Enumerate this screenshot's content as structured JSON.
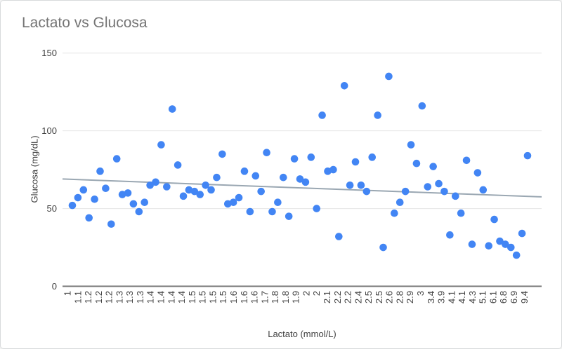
{
  "window": {
    "background": "#ffffff",
    "border_color": "#d8dadc"
  },
  "chart_data": {
    "type": "scatter",
    "title": "Lactato vs Glucosa",
    "xlabel": "Lactato (mmol/L)",
    "ylabel": "Glucosa (mg/dL)",
    "ylim": [
      0,
      150
    ],
    "yticks": [
      0,
      50,
      100,
      150
    ],
    "grid": "horizontal",
    "legend": "none",
    "x_tick_labels": [
      "1",
      "1.1",
      "1.2",
      "1.2",
      "1.2",
      "1.3",
      "1.3",
      "1.3",
      "1.4",
      "1.4",
      "1.4",
      "1.4",
      "1.5",
      "1.5",
      "1.5",
      "1.5",
      "1.6",
      "1.6",
      "1.6",
      "1.7",
      "1.8",
      "1.8",
      "1.9",
      "2",
      "2",
      "2.1",
      "2.2",
      "2.2",
      "2.4",
      "2.5",
      "2.5",
      "2.6",
      "2.8",
      "2.9",
      "3",
      "3.4",
      "3.9",
      "4.1",
      "4.1",
      "4.3",
      "5.1",
      "6.1",
      "6.8",
      "6.9",
      "9.4"
    ],
    "series": [
      {
        "name": "Glucosa",
        "color": "#4285f4",
        "points": [
          [
            1,
            52
          ],
          [
            1.1,
            57
          ],
          [
            1.1,
            62
          ],
          [
            1.2,
            44
          ],
          [
            1.2,
            56
          ],
          [
            1.2,
            74
          ],
          [
            1.2,
            63
          ],
          [
            1.2,
            40
          ],
          [
            1.2,
            82
          ],
          [
            1.3,
            59
          ],
          [
            1.3,
            60
          ],
          [
            1.3,
            53
          ],
          [
            1.3,
            48
          ],
          [
            1.3,
            54
          ],
          [
            1.4,
            65
          ],
          [
            1.4,
            67
          ],
          [
            1.4,
            91
          ],
          [
            1.4,
            64
          ],
          [
            1.4,
            114
          ],
          [
            1.4,
            78
          ],
          [
            1.4,
            58
          ],
          [
            1.4,
            62
          ],
          [
            1.5,
            61
          ],
          [
            1.5,
            59
          ],
          [
            1.5,
            65
          ],
          [
            1.5,
            62
          ],
          [
            1.5,
            70
          ],
          [
            1.5,
            85
          ],
          [
            1.5,
            53
          ],
          [
            1.6,
            54
          ],
          [
            1.6,
            57
          ],
          [
            1.6,
            74
          ],
          [
            1.6,
            48
          ],
          [
            1.6,
            71
          ],
          [
            1.6,
            61
          ],
          [
            1.7,
            86
          ],
          [
            1.7,
            48
          ],
          [
            1.8,
            54
          ],
          [
            1.8,
            70
          ],
          [
            1.8,
            45
          ],
          [
            1.8,
            82
          ],
          [
            1.9,
            69
          ],
          [
            2,
            67
          ],
          [
            2,
            83
          ],
          [
            2,
            50
          ],
          [
            2,
            110
          ],
          [
            2.1,
            74
          ],
          [
            2.1,
            75
          ],
          [
            2.2,
            32
          ],
          [
            2.2,
            129
          ],
          [
            2.2,
            65
          ],
          [
            2.2,
            80
          ],
          [
            2.4,
            65
          ],
          [
            2.4,
            61
          ],
          [
            2.5,
            83
          ],
          [
            2.5,
            110
          ],
          [
            2.5,
            25
          ],
          [
            2.6,
            135
          ],
          [
            2.6,
            47
          ],
          [
            2.8,
            54
          ],
          [
            2.8,
            61
          ],
          [
            2.9,
            91
          ],
          [
            2.9,
            79
          ],
          [
            3,
            116
          ],
          [
            3,
            64
          ],
          [
            3.4,
            77
          ],
          [
            3.4,
            66
          ],
          [
            3.9,
            61
          ],
          [
            3.9,
            33
          ],
          [
            4.1,
            58
          ],
          [
            4.1,
            47
          ],
          [
            4.1,
            81
          ],
          [
            4.3,
            27
          ],
          [
            4.3,
            73
          ],
          [
            5.1,
            62
          ],
          [
            5.1,
            26
          ],
          [
            6.1,
            43
          ],
          [
            6.1,
            29
          ],
          [
            6.8,
            27
          ],
          [
            6.8,
            25
          ],
          [
            6.9,
            20
          ],
          [
            6.9,
            34
          ],
          [
            9.4,
            84
          ]
        ]
      }
    ],
    "trendline": {
      "color": "#9aa7b2",
      "start_value": 69,
      "end_value": 57.5
    },
    "colors": {
      "point": "#4285f4",
      "gridline": "#e6e6e6",
      "axis_line": "#757575",
      "tick_text": "#424242",
      "title_text": "#757575"
    }
  }
}
